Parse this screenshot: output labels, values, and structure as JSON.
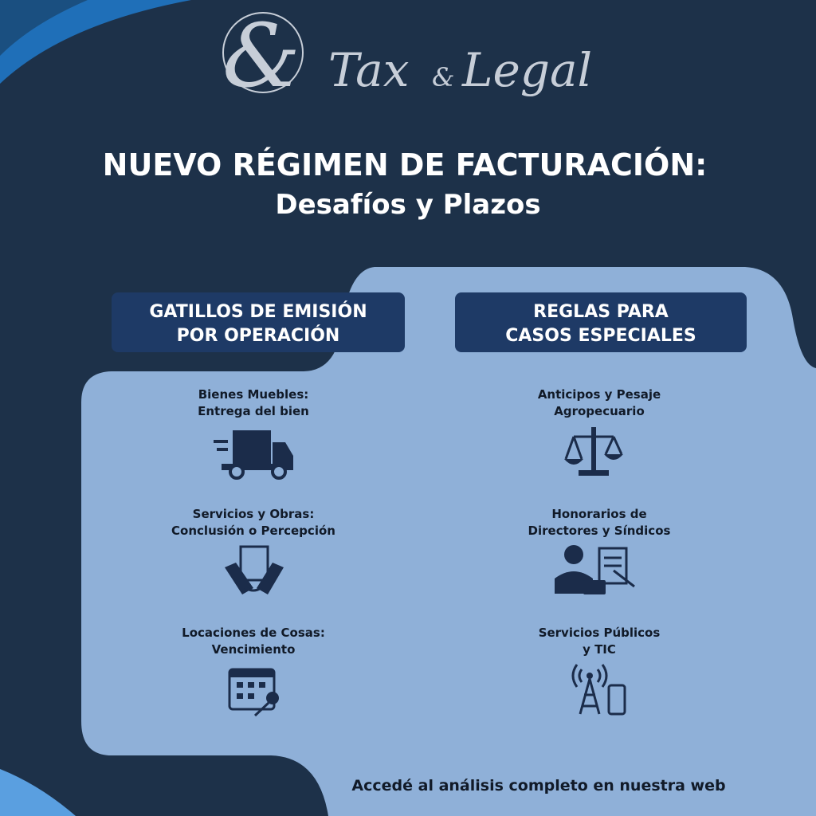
{
  "logo": {
    "monogram": "&",
    "brand_1": "Tax",
    "brand_amp": "&",
    "brand_2": "Legal"
  },
  "title": {
    "line_1": "NUEVO RÉGIMEN DE FACTURACIÓN:",
    "line_2": "Desafíos y Plazos"
  },
  "columns": [
    {
      "header": [
        "GATILLOS DE EMISIÓN",
        "POR OPERACIÓN"
      ],
      "items": [
        [
          "Bienes Muebles:",
          "Entrega del bien"
        ],
        [
          "Servicios y Obras:",
          "Conclusión o Percepción"
        ],
        [
          "Locaciones de Cosas:",
          "Vencimiento"
        ]
      ]
    },
    {
      "header": [
        "REGLAS PARA",
        "CASOS ESPECIALES"
      ],
      "items": [
        [
          "Anticipos y Pesaje",
          "Agropecuario"
        ],
        [
          "Honorarios de",
          "Directores y Síndicos"
        ],
        [
          "Servicios Públicos",
          "y TIC"
        ]
      ]
    }
  ],
  "footer": "Accedé al análisis completo en nuestra web"
}
